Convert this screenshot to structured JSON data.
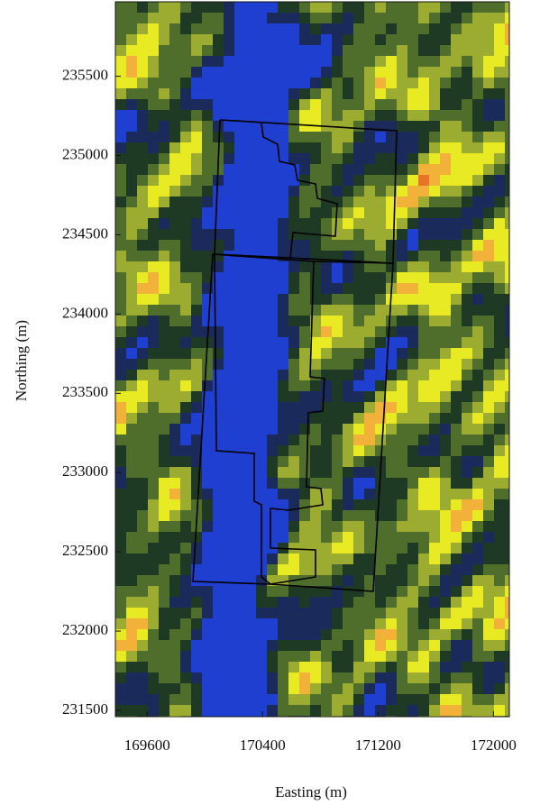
{
  "chart_data": {
    "type": "raster-map",
    "x_label": "Easting (m)",
    "y_label": "Northing (m)",
    "xlim": [
      169380,
      172110
    ],
    "ylim": [
      231460,
      235970
    ],
    "xticks": [
      169600,
      170400,
      171200,
      172000
    ],
    "yticks": [
      231500,
      232000,
      232500,
      233000,
      233500,
      234000,
      234500,
      235000,
      235500
    ]
  }
}
